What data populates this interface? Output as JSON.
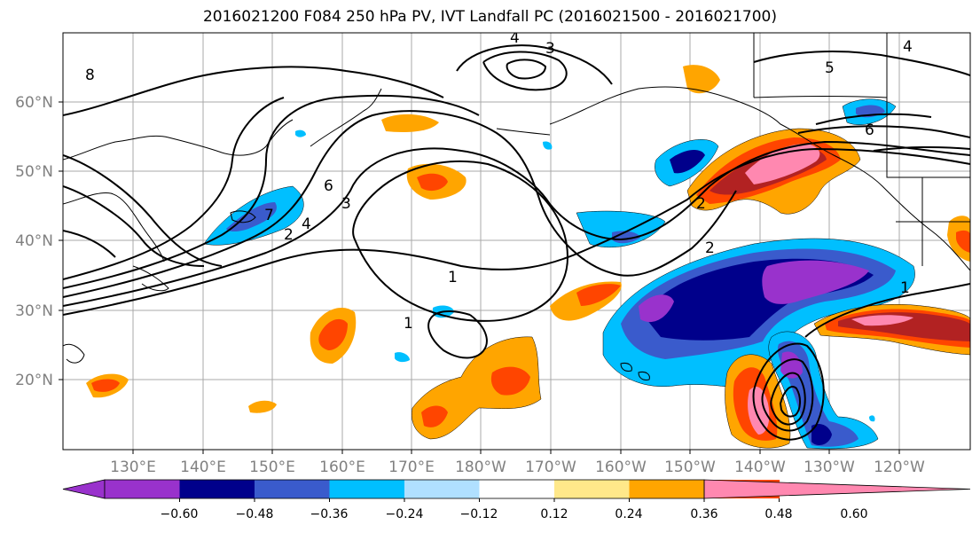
{
  "title": "2016021200 F084 250 hPa PV, IVT Landfall PC (2016021500 - 2016021700)",
  "map": {
    "lat_labels": [
      "60°N",
      "50°N",
      "40°N",
      "30°N",
      "20°N"
    ],
    "lon_labels": [
      "130°E",
      "140°E",
      "150°E",
      "160°E",
      "170°E",
      "180°W",
      "170°W",
      "160°W",
      "150°W",
      "140°W",
      "130°W",
      "120°W"
    ],
    "pv_contour_labels": [
      "8",
      "4",
      "3",
      "2",
      "1",
      "6",
      "3",
      "4",
      "2",
      "1",
      "1",
      "2",
      "6",
      "5",
      "4",
      "7"
    ]
  },
  "colorbar": {
    "ticks": [
      "−0.60",
      "−0.48",
      "−0.36",
      "−0.24",
      "−0.12",
      "0.12",
      "0.24",
      "0.36",
      "0.48",
      "0.60"
    ],
    "colors": [
      "#9932cc",
      "#00008b",
      "#3a5bcc",
      "#00bfff",
      "#b0e0ff",
      "#ffffff",
      "#ffe88a",
      "#ffa500",
      "#ff4500",
      "#b22222",
      "#ff88b0"
    ]
  }
}
